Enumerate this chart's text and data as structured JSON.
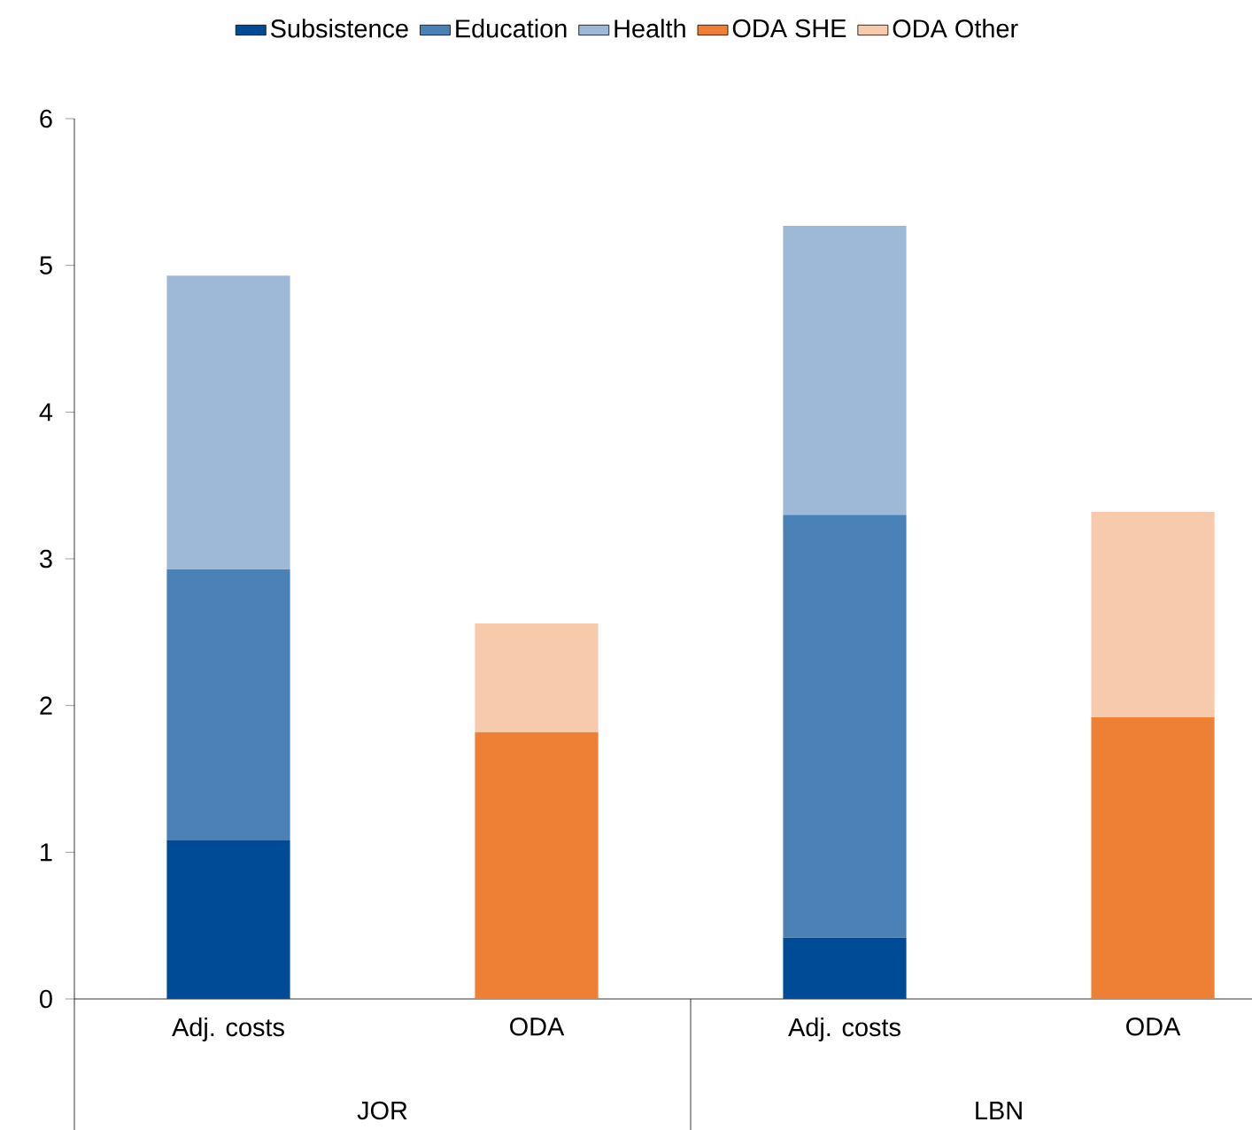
{
  "chart_data": {
    "type": "bar",
    "stacked": true,
    "categories": [
      "Adj. costs",
      "ODA",
      "Adj. costs",
      "ODA"
    ],
    "series": [
      {
        "name": "Subsistence",
        "color": "#004b96",
        "values": [
          1.08,
          null,
          0.42,
          null
        ]
      },
      {
        "name": "Education",
        "color": "#4a81b7",
        "values": [
          1.85,
          null,
          2.88,
          null
        ]
      },
      {
        "name": "Health",
        "color": "#9eb9d7",
        "values": [
          2.0,
          null,
          1.97,
          null
        ]
      },
      {
        "name": "ODA SHE",
        "color": "#ee8035",
        "values": [
          null,
          1.82,
          null,
          1.92
        ]
      },
      {
        "name": "ODA Other",
        "color": "#f7caab",
        "values": [
          null,
          0.74,
          null,
          1.4
        ]
      }
    ],
    "annotations": [
      "JOR",
      "LBN"
    ],
    "ylim": [
      0,
      6
    ],
    "yticks": [
      0,
      1,
      2,
      3,
      4,
      5,
      6
    ],
    "grid": false,
    "legend": "top"
  }
}
